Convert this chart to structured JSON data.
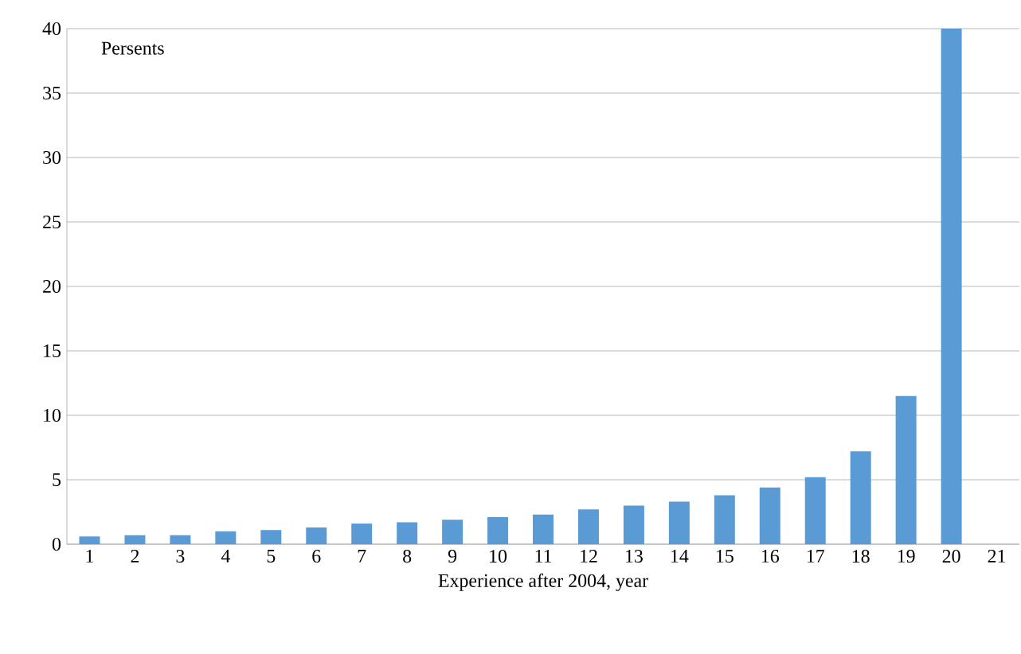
{
  "chart_data": {
    "type": "bar",
    "ylabel": "Persents",
    "xlabel": "Experience after 2004, year",
    "categories": [
      "1",
      "2",
      "3",
      "4",
      "5",
      "6",
      "7",
      "8",
      "9",
      "10",
      "11",
      "12",
      "13",
      "14",
      "15",
      "16",
      "17",
      "18",
      "19",
      "20",
      "21"
    ],
    "values": [
      0.6,
      0.7,
      0.7,
      1.0,
      1.1,
      1.3,
      1.6,
      1.7,
      1.9,
      2.1,
      2.3,
      2.7,
      3.0,
      3.3,
      3.8,
      4.4,
      5.2,
      7.2,
      11.5,
      40,
      null
    ],
    "color": "#5b9bd5",
    "ylim": [
      0,
      40
    ],
    "yticks": [
      0,
      5,
      10,
      15,
      20,
      25,
      30,
      35,
      40
    ],
    "grid": "y"
  }
}
